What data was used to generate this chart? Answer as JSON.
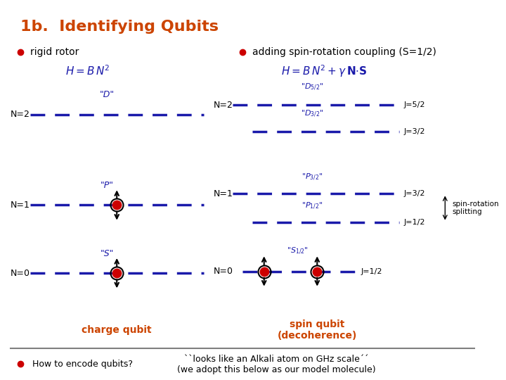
{
  "title": "1b.  Identifying Qubits",
  "title_color": "#cc4400",
  "bg_color": "#ffffff",
  "bullet_color": "#cc0000",
  "bullet1": "rigid rotor",
  "bullet2": "adding spin-rotation coupling (S=1/2)",
  "line_color": "#1a1aaa",
  "energy_color": "#1a1aaa",
  "orange_color": "#cc4400",
  "charge_qubit_label": "charge qubit",
  "spin_qubit_label": "spin qubit\n(decoherence)",
  "spin_rotation_label": "spin-rotation\nsplitting",
  "bottom_bullet": "How to encode qubits?",
  "bottom_right": "``looks like an Alkali atom on GHz scale´´\n(we adopt this below as our model molecule)"
}
